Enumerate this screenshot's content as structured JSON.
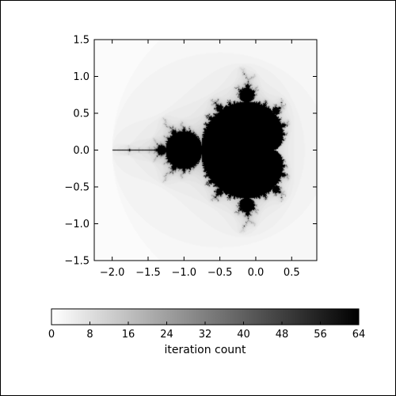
{
  "chart_data": [
    {
      "type": "heatmap",
      "title": "",
      "xlabel": "",
      "ylabel": "",
      "xlim": [
        -2.25,
        0.85
      ],
      "ylim": [
        -1.5,
        1.5
      ],
      "x_ticks": [
        "−2.0",
        "−1.5",
        "−1.0",
        "−0.5",
        "0.0",
        "0.5"
      ],
      "x_tick_values": [
        -2.0,
        -1.5,
        -1.0,
        -0.5,
        0.0,
        0.5
      ],
      "y_ticks": [
        "1.5",
        "1.0",
        "0.5",
        "0.0",
        "−0.5",
        "−1.0",
        "−1.5"
      ],
      "y_tick_values": [
        1.5,
        1.0,
        0.5,
        0.0,
        -0.5,
        -1.0,
        -1.5
      ],
      "colormap": "gray_r",
      "max_iterations": 64,
      "grid": false
    },
    {
      "type": "colorbar",
      "orientation": "horizontal",
      "label": "iteration count",
      "range": [
        0,
        64
      ],
      "ticks": [
        "0",
        "8",
        "16",
        "24",
        "32",
        "40",
        "48",
        "56",
        "64"
      ],
      "tick_values": [
        0,
        8,
        16,
        24,
        32,
        40,
        48,
        56,
        64
      ]
    }
  ]
}
